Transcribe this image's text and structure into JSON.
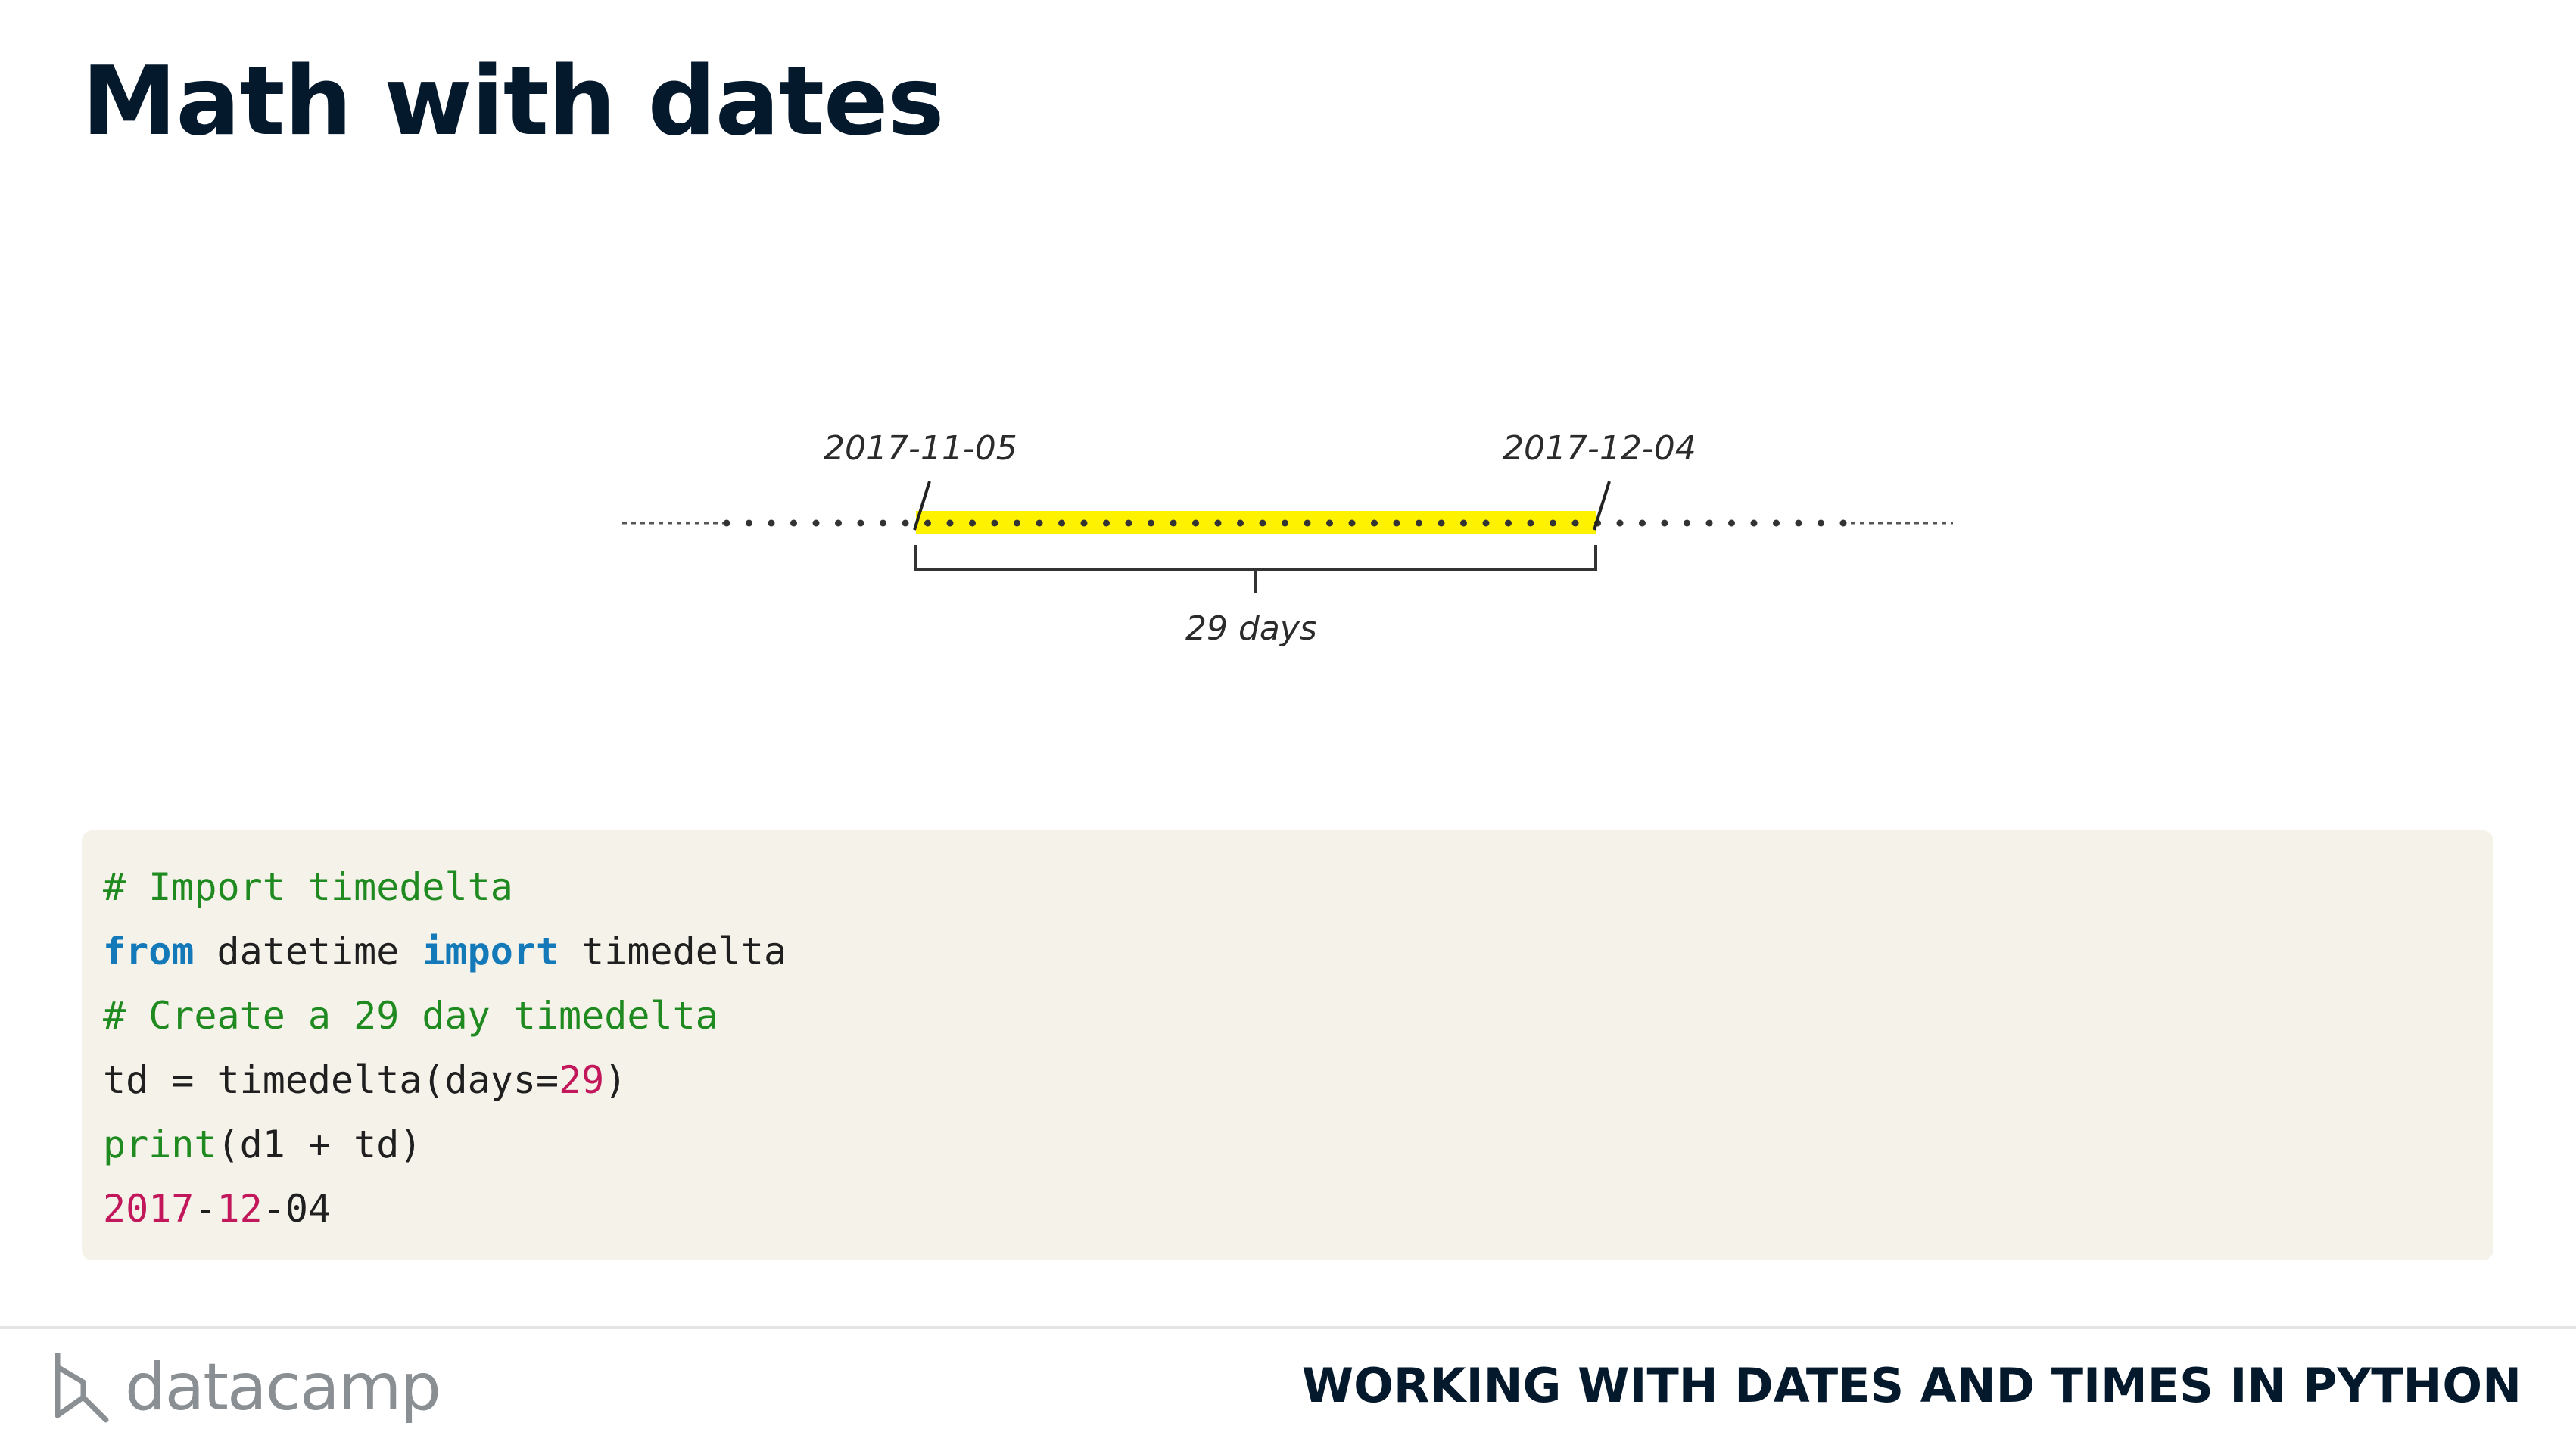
{
  "slide": {
    "title": "Math with dates"
  },
  "diagram": {
    "start_date": "2017-11-05",
    "end_date": "2017-12-04",
    "span_label": "29 days",
    "highlight_color": "#fff200"
  },
  "code": {
    "lines": [
      [
        {
          "t": "# Import timedelta",
          "c": "cm"
        }
      ],
      [
        {
          "t": "from",
          "c": "kw"
        },
        {
          "t": " datetime ",
          "c": ""
        },
        {
          "t": "import",
          "c": "kw"
        },
        {
          "t": " timedelta",
          "c": ""
        }
      ],
      [
        {
          "t": "# Create a 29 day timedelta",
          "c": "cm"
        }
      ],
      [
        {
          "t": "td = timedelta(days=",
          "c": ""
        },
        {
          "t": "29",
          "c": "num"
        },
        {
          "t": ")",
          "c": ""
        }
      ],
      [
        {
          "t": "print",
          "c": "fn"
        },
        {
          "t": "(d1 + td)",
          "c": ""
        }
      ],
      [
        {
          "t": "2017",
          "c": "num"
        },
        {
          "t": "-",
          "c": ""
        },
        {
          "t": "12",
          "c": "num"
        },
        {
          "t": "-04",
          "c": ""
        }
      ]
    ]
  },
  "footer": {
    "brand": "datacamp",
    "course_title": "WORKING WITH DATES AND TIMES IN PYTHON"
  }
}
